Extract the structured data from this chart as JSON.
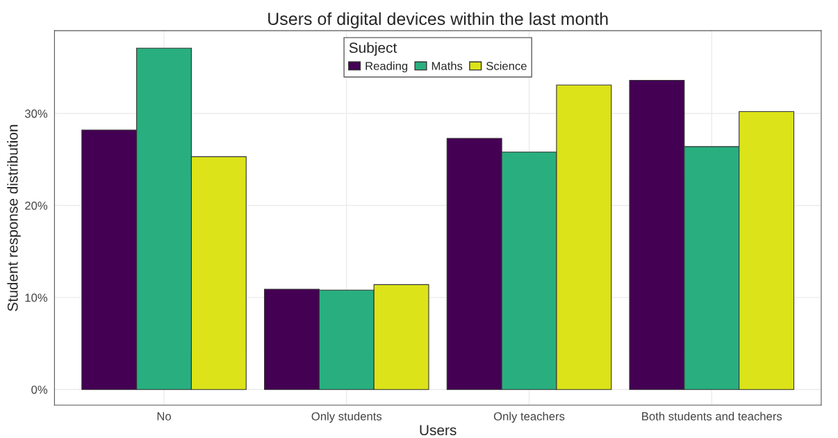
{
  "chart_data": {
    "type": "bar",
    "title": "Users of digital devices within the last month",
    "xlabel": "Users",
    "ylabel": "Student response distribution",
    "legend_title": "Subject",
    "categories": [
      "No",
      "Only students",
      "Only teachers",
      "Both students and teachers"
    ],
    "series": [
      {
        "name": "Reading",
        "color": "#440154",
        "values": [
          28.2,
          10.9,
          27.3,
          33.6
        ]
      },
      {
        "name": "Maths",
        "color": "#29af7f",
        "values": [
          37.1,
          10.8,
          25.8,
          26.4
        ]
      },
      {
        "name": "Science",
        "color": "#dce318",
        "values": [
          25.3,
          11.4,
          33.1,
          30.2
        ]
      }
    ],
    "ylim": [
      -1.7,
      39.0
    ],
    "yticks": [
      {
        "value": 0,
        "label": "0%"
      },
      {
        "value": 10,
        "label": "10%"
      },
      {
        "value": 20,
        "label": "20%"
      },
      {
        "value": 30,
        "label": "30%"
      }
    ],
    "grid": true,
    "legend": "top"
  }
}
